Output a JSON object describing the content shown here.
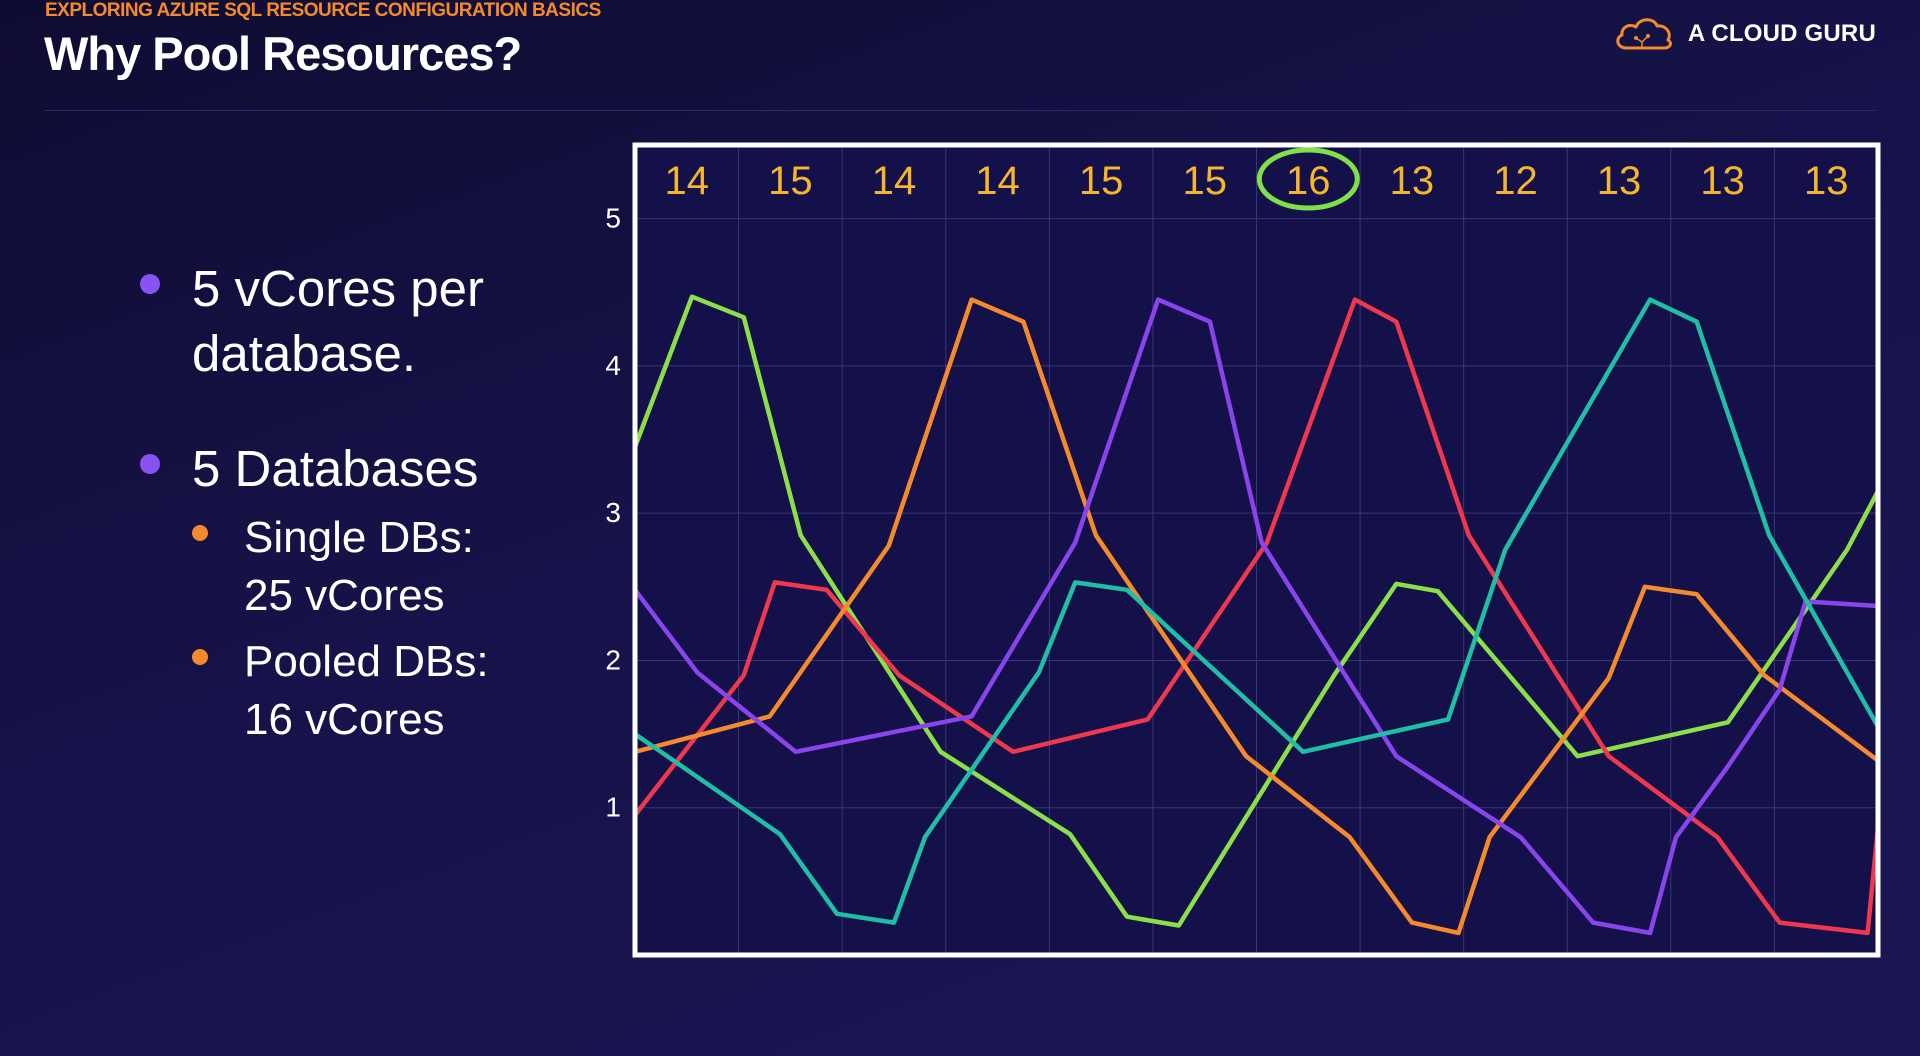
{
  "header": {
    "eyebrow": "EXPLORING AZURE SQL RESOURCE CONFIGURATION BASICS",
    "title": "Why Pool Resources?",
    "brand": "A CLOUD GURU"
  },
  "bullets": [
    {
      "text": "5 vCores per\ndatabase.",
      "subs": []
    },
    {
      "text": "5 Databases",
      "subs": [
        "Single DBs:\n25 vCores",
        "Pooled DBs:\n16 vCores"
      ]
    }
  ],
  "colors": {
    "background": "#15124a",
    "accent_orange": "#f58a2c",
    "bullet_purple": "#8a52f3",
    "total_label": "#f5b52c",
    "highlight_circle": "#7fe04a"
  },
  "chart_data": {
    "type": "line",
    "ylim": [
      0,
      5.5
    ],
    "yticks": [
      1,
      2,
      3,
      4,
      5
    ],
    "xlim": [
      0,
      12
    ],
    "interval_totals": [
      "14",
      "15",
      "14",
      "14",
      "15",
      "15",
      "16",
      "13",
      "12",
      "13",
      "13",
      "13"
    ],
    "highlight_interval_index": 6,
    "grid": true,
    "series": [
      {
        "color": "#8be04a",
        "x": [
          0,
          0.55,
          1.05,
          1.6,
          2.95,
          4.2,
          4.75,
          5.25,
          6.75,
          7.35,
          7.75,
          9.1,
          10.55,
          11.7,
          12
        ],
        "y": [
          3.45,
          4.47,
          4.33,
          2.85,
          1.38,
          0.82,
          0.26,
          0.2,
          1.9,
          2.52,
          2.47,
          1.35,
          1.58,
          2.75,
          3.15
        ]
      },
      {
        "color": "#f0384c",
        "x": [
          0,
          1.05,
          1.35,
          1.85,
          2.55,
          3.65,
          4.95,
          6.1,
          6.95,
          7.35,
          8.05,
          9.4,
          10.45,
          11.05,
          11.9,
          12
        ],
        "y": [
          0.95,
          1.9,
          2.53,
          2.48,
          1.9,
          1.38,
          1.6,
          2.8,
          4.45,
          4.3,
          2.85,
          1.35,
          0.8,
          0.22,
          0.15,
          0.87
        ]
      },
      {
        "color": "#f58a2c",
        "x": [
          0,
          1.3,
          2.45,
          3.25,
          3.75,
          4.45,
          5.9,
          6.9,
          7.5,
          7.95,
          8.25,
          9.4,
          9.75,
          10.25,
          10.9,
          12
        ],
        "y": [
          1.38,
          1.62,
          2.78,
          4.45,
          4.3,
          2.85,
          1.35,
          0.8,
          0.22,
          0.15,
          0.8,
          1.88,
          2.5,
          2.45,
          1.9,
          1.32
        ]
      },
      {
        "color": "#8a44ee",
        "x": [
          0,
          0.6,
          1.55,
          3.25,
          4.25,
          5.05,
          5.55,
          6.05,
          7.35,
          8.55,
          9.25,
          9.8,
          10.05,
          10.55,
          11.05,
          11.3,
          12
        ],
        "y": [
          2.48,
          1.92,
          1.38,
          1.62,
          2.8,
          4.45,
          4.3,
          2.8,
          1.35,
          0.8,
          0.22,
          0.15,
          0.8,
          1.28,
          1.8,
          2.4,
          2.37
        ]
      },
      {
        "color": "#1fbfa6",
        "x": [
          0,
          0.25,
          1.4,
          1.95,
          2.5,
          2.8,
          3.9,
          4.25,
          4.75,
          6.45,
          7.85,
          8.4,
          9.8,
          10.25,
          10.95,
          12
        ],
        "y": [
          1.5,
          1.38,
          0.82,
          0.28,
          0.22,
          0.8,
          1.92,
          2.53,
          2.48,
          1.38,
          1.6,
          2.75,
          4.45,
          4.3,
          2.85,
          1.55
        ]
      }
    ]
  }
}
